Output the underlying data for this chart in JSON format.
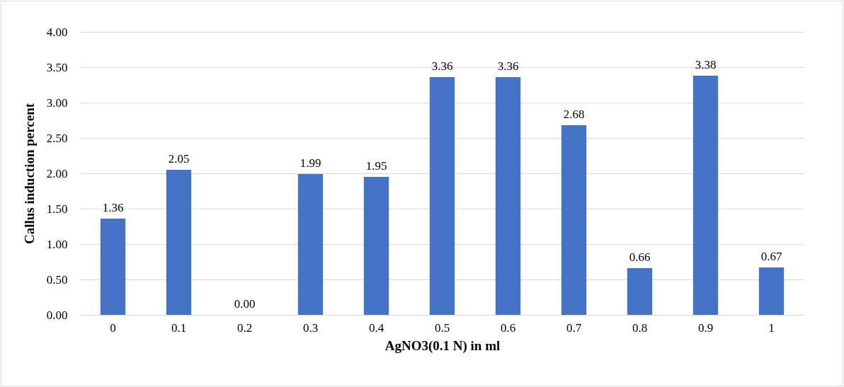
{
  "chart_data": {
    "type": "bar",
    "xlabel": "AgNO3(0.1 N) in ml",
    "ylabel": "Callus induction percent",
    "categories": [
      "0",
      "0.1",
      "0.2",
      "0.3",
      "0.4",
      "0.5",
      "0.6",
      "0.7",
      "0.8",
      "0.9",
      "1"
    ],
    "values": [
      1.36,
      2.05,
      0,
      1.99,
      1.95,
      3.36,
      3.36,
      2.68,
      0.66,
      3.38,
      0.67
    ],
    "value_labels": [
      "1.36",
      "2.05",
      "0.00",
      "1.99",
      "1.95",
      "3.36",
      "3.36",
      "2.68",
      "0.66",
      "3.38",
      "0.67"
    ],
    "color": "#4472c4",
    "ylim": [
      0,
      4
    ],
    "yticks": [
      {
        "value": 0,
        "label": "0.00"
      },
      {
        "value": 0.5,
        "label": "0.50"
      },
      {
        "value": 1,
        "label": "1.00"
      },
      {
        "value": 1.5,
        "label": "1.50"
      },
      {
        "value": 2,
        "label": "2.00"
      },
      {
        "value": 2.5,
        "label": "2.50"
      },
      {
        "value": 3,
        "label": "3.00"
      },
      {
        "value": 3.5,
        "label": "3.50"
      },
      {
        "value": 4,
        "label": "4.00"
      }
    ],
    "grid": "y"
  }
}
